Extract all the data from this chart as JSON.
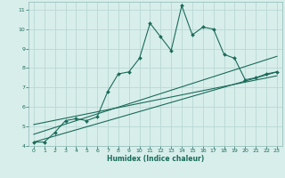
{
  "xlabel": "Humidex (Indice chaleur)",
  "ylabel": "",
  "bg_color": "#d8eeeb",
  "grid_color": "#b8d8d4",
  "line_color": "#1a6b5a",
  "xlim": [
    -0.5,
    23.5
  ],
  "ylim": [
    4,
    11.4
  ],
  "xticks": [
    0,
    1,
    2,
    3,
    4,
    5,
    6,
    7,
    8,
    9,
    10,
    11,
    12,
    13,
    14,
    15,
    16,
    17,
    18,
    19,
    20,
    21,
    22,
    23
  ],
  "yticks": [
    4,
    5,
    6,
    7,
    8,
    9,
    10,
    11
  ],
  "main_x": [
    0,
    1,
    2,
    3,
    4,
    5,
    6,
    7,
    8,
    9,
    10,
    11,
    12,
    13,
    14,
    15,
    16,
    17,
    18,
    19,
    20,
    21,
    22,
    23
  ],
  "main_y": [
    4.2,
    4.2,
    4.7,
    5.3,
    5.4,
    5.3,
    5.5,
    6.8,
    7.7,
    7.8,
    8.5,
    10.3,
    9.6,
    8.9,
    11.2,
    9.7,
    10.1,
    10.0,
    8.7,
    8.5,
    7.4,
    7.5,
    7.7,
    7.8
  ],
  "line1_x": [
    0,
    23
  ],
  "line1_y": [
    4.2,
    7.8
  ],
  "line2_x": [
    0,
    23
  ],
  "line2_y": [
    4.6,
    8.6
  ],
  "line3_x": [
    0,
    23
  ],
  "line3_y": [
    5.1,
    7.6
  ],
  "tick_fontsize": 4.5,
  "xlabel_fontsize": 5.5,
  "tick_color": "#1a6b5a",
  "spine_color": "#8ab8b4"
}
